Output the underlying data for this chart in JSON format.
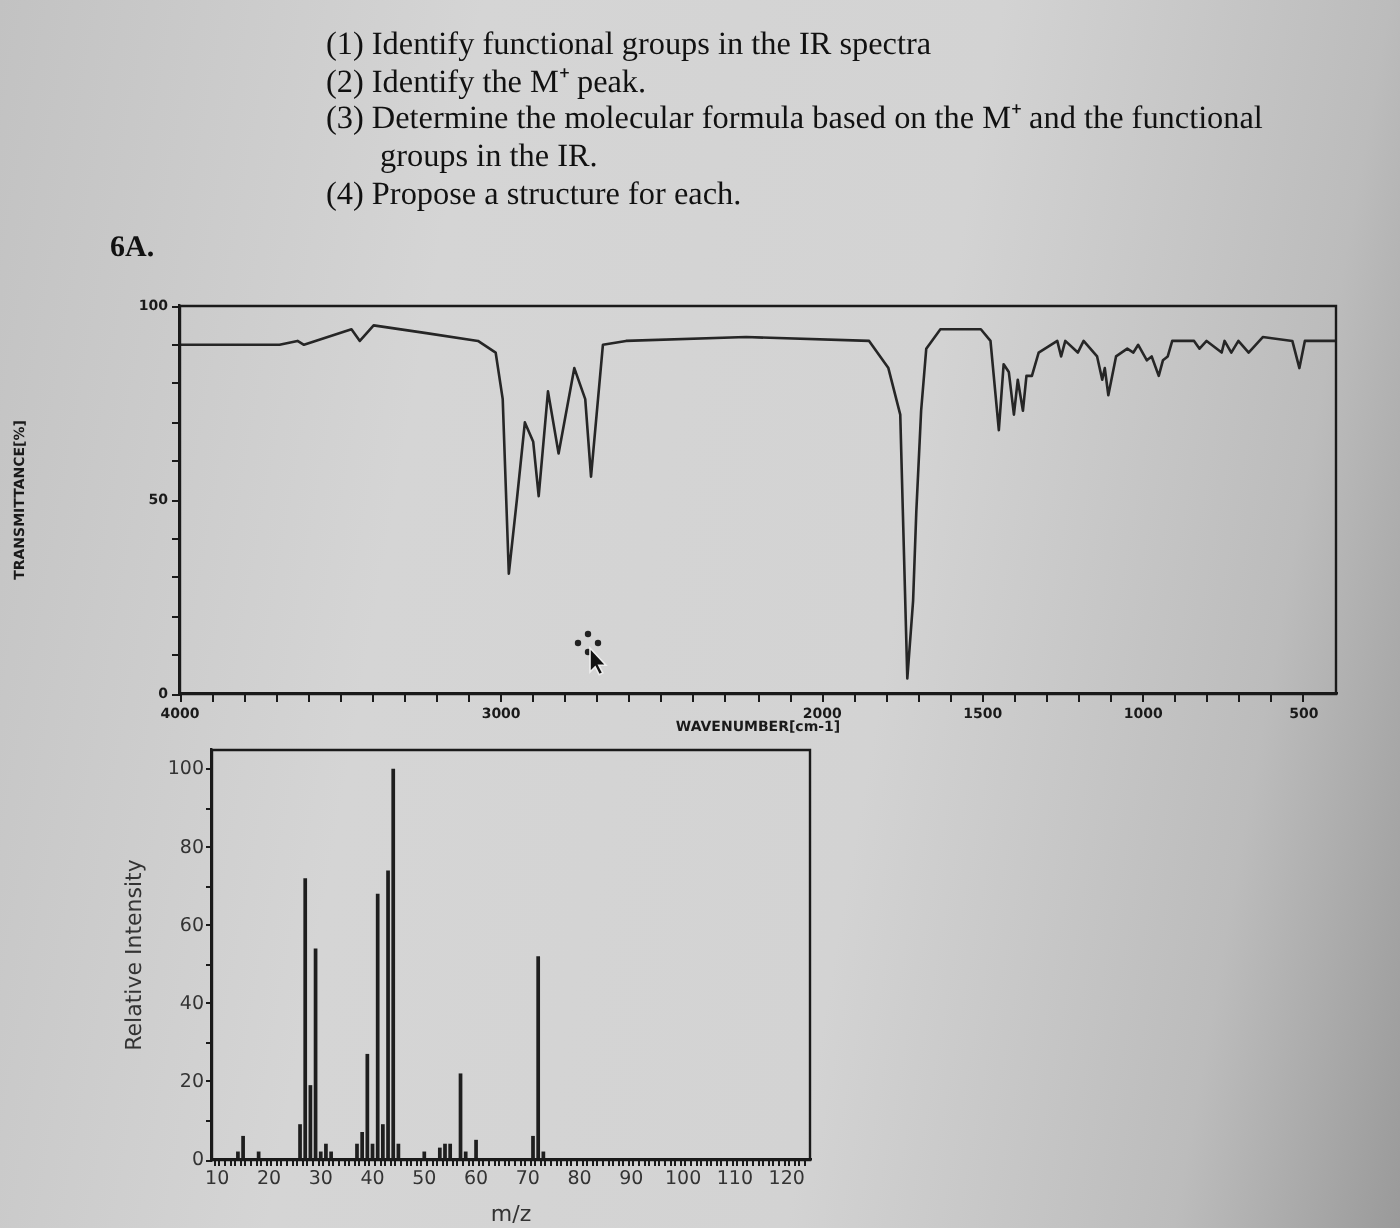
{
  "chart_data": [
    {
      "type": "line",
      "annotations": [
        "(1) Identify functional groups in the IR spectra",
        "(2) Identify the M⁺ peak.",
        "(3) Determine the molecular formula based on the M⁺ and the functional groups in the IR.",
        "(4) Propose a structure for each."
      ],
      "title": "6A.",
      "xlabel": "WAVENUMBER[cm-1]",
      "ylabel": "TRANSMITTANCE[%]",
      "x": [
        4000,
        3690,
        3634,
        3614,
        3466,
        3440,
        3397,
        3233,
        3072,
        3017,
        2995,
        2976,
        2951,
        2926,
        2900,
        2883,
        2854,
        2821,
        2772,
        2738,
        2720,
        2683,
        2611,
        2237,
        1854,
        1794,
        1757,
        1735,
        1717,
        1707,
        1692,
        1676,
        1632,
        1506,
        1476,
        1450,
        1435,
        1419,
        1403,
        1391,
        1375,
        1364,
        1347,
        1326,
        1268,
        1256,
        1243,
        1204,
        1186,
        1144,
        1128,
        1120,
        1109,
        1085,
        1050,
        1031,
        1016,
        989,
        974,
        952,
        939,
        924,
        910,
        842,
        825,
        803,
        756,
        747,
        726,
        704,
        672,
        628,
        536,
        514,
        497,
        400
      ],
      "values": [
        90,
        90,
        91,
        90,
        94,
        91,
        95,
        93,
        91,
        88,
        76,
        31,
        50,
        70,
        65,
        51,
        78,
        62,
        84,
        76,
        56,
        90,
        91,
        92,
        91,
        84,
        72,
        4,
        24,
        47,
        73,
        89,
        94,
        94,
        91,
        68,
        85,
        83,
        72,
        81,
        73,
        82,
        82,
        88,
        91,
        87,
        91,
        88,
        91,
        87,
        81,
        84,
        77,
        87,
        89,
        88,
        90,
        86,
        87,
        82,
        86,
        87,
        91,
        91,
        89,
        91,
        88,
        91,
        88,
        91,
        88,
        92,
        91,
        84,
        91,
        91
      ],
      "color": "#262626",
      "xlim": [
        4000,
        400
      ],
      "xticks": [
        4000,
        {
          "value": 3900,
          "label": null
        },
        {
          "value": 3800,
          "label": null
        },
        {
          "value": 3700,
          "label": null
        },
        {
          "value": 3600,
          "label": null
        },
        {
          "value": 3500,
          "label": null
        },
        {
          "value": 3400,
          "label": null
        },
        {
          "value": 3300,
          "label": null
        },
        {
          "value": 3200,
          "label": null
        },
        {
          "value": 3100,
          "label": null
        },
        3000,
        {
          "value": 2900,
          "label": null
        },
        {
          "value": 2800,
          "label": null
        },
        {
          "value": 2700,
          "label": null
        },
        {
          "value": 2600,
          "label": null
        },
        {
          "value": 2500,
          "label": null
        },
        {
          "value": 2400,
          "label": null
        },
        {
          "value": 2300,
          "label": null
        },
        {
          "value": 2200,
          "label": null
        },
        {
          "value": 2100,
          "label": null
        },
        2000,
        {
          "value": 1900,
          "label": null
        },
        {
          "value": 1800,
          "label": null
        },
        {
          "value": 1700,
          "label": null
        },
        {
          "value": 1600,
          "label": null
        },
        1500,
        {
          "value": 1400,
          "label": null
        },
        {
          "value": 1300,
          "label": null
        },
        {
          "value": 1200,
          "label": null
        },
        {
          "value": 1100,
          "label": null
        },
        1000,
        {
          "value": 900,
          "label": null
        },
        {
          "value": 800,
          "label": null
        },
        {
          "value": 700,
          "label": null
        },
        {
          "value": 600,
          "label": null
        },
        500
      ],
      "ylim": [
        0,
        100
      ],
      "yticks": [
        0,
        {
          "value": 10,
          "label": null
        },
        {
          "value": 20,
          "label": null
        },
        {
          "value": 30,
          "label": null
        },
        {
          "value": 40,
          "label": null
        },
        50,
        {
          "value": 60,
          "label": null
        },
        {
          "value": 70,
          "label": null
        },
        {
          "value": 80,
          "label": null
        },
        {
          "value": 90,
          "label": null
        },
        100
      ]
    },
    {
      "type": "bar",
      "xlabel": "m/z",
      "ylabel": "Relative Intensity",
      "x": [
        14,
        15,
        18,
        26,
        27,
        28,
        29,
        30,
        31,
        32,
        37,
        38,
        39,
        40,
        41,
        42,
        43,
        44,
        45,
        50,
        53,
        54,
        55,
        57,
        58,
        60,
        71,
        72,
        73
      ],
      "values": [
        2,
        6,
        2,
        9,
        72,
        19,
        54,
        2,
        4,
        2,
        4,
        7,
        27,
        4,
        68,
        9,
        74,
        100,
        4,
        2,
        3,
        4,
        4,
        22,
        2,
        5,
        6,
        52,
        2
      ],
      "color": "#1e1e1e",
      "xlim": [
        9.5,
        124
      ],
      "xticks": [
        10,
        {
          "value": 11,
          "label": null
        },
        {
          "value": 12,
          "label": null
        },
        {
          "value": 13,
          "label": null
        },
        {
          "value": 14,
          "label": null
        },
        {
          "value": 15,
          "label": null
        },
        {
          "value": 16,
          "label": null
        },
        {
          "value": 17,
          "label": null
        },
        {
          "value": 18,
          "label": null
        },
        {
          "value": 19,
          "label": null
        },
        20,
        {
          "value": 21,
          "label": null
        },
        {
          "value": 22,
          "label": null
        },
        {
          "value": 23,
          "label": null
        },
        {
          "value": 24,
          "label": null
        },
        {
          "value": 25,
          "label": null
        },
        {
          "value": 26,
          "label": null
        },
        {
          "value": 27,
          "label": null
        },
        {
          "value": 28,
          "label": null
        },
        {
          "value": 29,
          "label": null
        },
        30,
        {
          "value": 31,
          "label": null
        },
        {
          "value": 32,
          "label": null
        },
        {
          "value": 33,
          "label": null
        },
        {
          "value": 34,
          "label": null
        },
        {
          "value": 35,
          "label": null
        },
        {
          "value": 36,
          "label": null
        },
        {
          "value": 37,
          "label": null
        },
        {
          "value": 38,
          "label": null
        },
        {
          "value": 39,
          "label": null
        },
        40,
        {
          "value": 41,
          "label": null
        },
        {
          "value": 42,
          "label": null
        },
        {
          "value": 43,
          "label": null
        },
        {
          "value": 44,
          "label": null
        },
        {
          "value": 45,
          "label": null
        },
        {
          "value": 46,
          "label": null
        },
        {
          "value": 47,
          "label": null
        },
        {
          "value": 48,
          "label": null
        },
        {
          "value": 49,
          "label": null
        },
        50,
        {
          "value": 51,
          "label": null
        },
        {
          "value": 52,
          "label": null
        },
        {
          "value": 53,
          "label": null
        },
        {
          "value": 54,
          "label": null
        },
        {
          "value": 55,
          "label": null
        },
        {
          "value": 56,
          "label": null
        },
        {
          "value": 57,
          "label": null
        },
        {
          "value": 58,
          "label": null
        },
        {
          "value": 59,
          "label": null
        },
        60,
        {
          "value": 61,
          "label": null
        },
        {
          "value": 62,
          "label": null
        },
        {
          "value": 63,
          "label": null
        },
        {
          "value": 64,
          "label": null
        },
        {
          "value": 65,
          "label": null
        },
        {
          "value": 66,
          "label": null
        },
        {
          "value": 67,
          "label": null
        },
        {
          "value": 68,
          "label": null
        },
        {
          "value": 69,
          "label": null
        },
        70,
        {
          "value": 71,
          "label": null
        },
        {
          "value": 72,
          "label": null
        },
        {
          "value": 73,
          "label": null
        },
        {
          "value": 74,
          "label": null
        },
        {
          "value": 75,
          "label": null
        },
        {
          "value": 76,
          "label": null
        },
        {
          "value": 77,
          "label": null
        },
        {
          "value": 78,
          "label": null
        },
        {
          "value": 79,
          "label": null
        },
        80,
        {
          "value": 81,
          "label": null
        },
        {
          "value": 82,
          "label": null
        },
        {
          "value": 83,
          "label": null
        },
        {
          "value": 84,
          "label": null
        },
        {
          "value": 85,
          "label": null
        },
        {
          "value": 86,
          "label": null
        },
        {
          "value": 87,
          "label": null
        },
        {
          "value": 88,
          "label": null
        },
        {
          "value": 89,
          "label": null
        },
        90,
        {
          "value": 91,
          "label": null
        },
        {
          "value": 92,
          "label": null
        },
        {
          "value": 93,
          "label": null
        },
        {
          "value": 94,
          "label": null
        },
        {
          "value": 95,
          "label": null
        },
        {
          "value": 96,
          "label": null
        },
        {
          "value": 97,
          "label": null
        },
        {
          "value": 98,
          "label": null
        },
        {
          "value": 99,
          "label": null
        },
        100,
        {
          "value": 101,
          "label": null
        },
        {
          "value": 102,
          "label": null
        },
        {
          "value": 103,
          "label": null
        },
        {
          "value": 104,
          "label": null
        },
        {
          "value": 105,
          "label": null
        },
        {
          "value": 106,
          "label": null
        },
        {
          "value": 107,
          "label": null
        },
        {
          "value": 108,
          "label": null
        },
        {
          "value": 109,
          "label": null
        },
        110,
        {
          "value": 111,
          "label": null
        },
        {
          "value": 112,
          "label": null
        },
        {
          "value": 113,
          "label": null
        },
        {
          "value": 114,
          "label": null
        },
        {
          "value": 115,
          "label": null
        },
        {
          "value": 116,
          "label": null
        },
        {
          "value": 117,
          "label": null
        },
        {
          "value": 118,
          "label": null
        },
        {
          "value": 119,
          "label": null
        },
        120,
        {
          "value": 121,
          "label": null
        },
        {
          "value": 122,
          "label": null
        },
        {
          "value": 123,
          "label": null
        }
      ],
      "ylim": [
        0,
        105
      ],
      "yticks": [
        0,
        {
          "value": 10,
          "label": null
        },
        20,
        {
          "value": 30,
          "label": null
        },
        40,
        {
          "value": 50,
          "label": null
        },
        60,
        {
          "value": 70,
          "label": null
        },
        80,
        {
          "value": 90,
          "label": null
        },
        100
      ]
    }
  ]
}
